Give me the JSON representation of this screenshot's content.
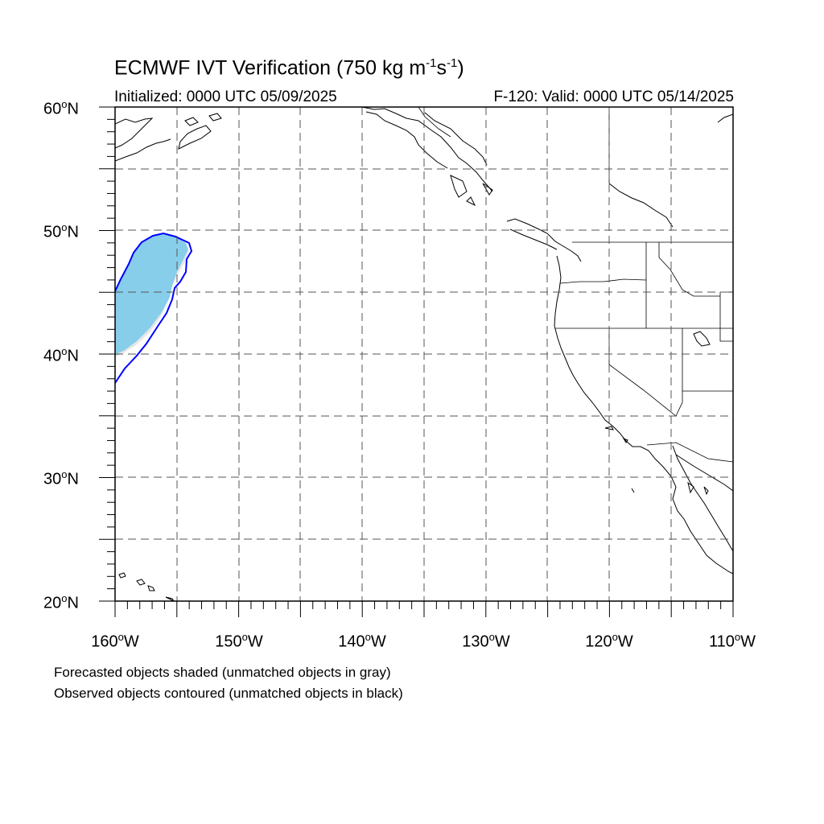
{
  "title": {
    "main": "ECMWF IVT Verification (750 kg m",
    "sup1": "-1",
    "mid": "s",
    "sup2": "-1",
    "end": ")"
  },
  "initialized": "Initialized: 0000 UTC 05/09/2025",
  "valid": "F-120: Valid: 0000 UTC 05/14/2025",
  "latitude_labels": [
    {
      "num": "60",
      "deg": "o",
      "hem": "N"
    },
    {
      "num": "50",
      "deg": "o",
      "hem": "N"
    },
    {
      "num": "40",
      "deg": "o",
      "hem": "N"
    },
    {
      "num": "30",
      "deg": "o",
      "hem": "N"
    },
    {
      "num": "20",
      "deg": "o",
      "hem": "N"
    }
  ],
  "longitude_labels": [
    {
      "num": "160",
      "deg": "o",
      "hem": "W"
    },
    {
      "num": "150",
      "deg": "o",
      "hem": "W"
    },
    {
      "num": "140",
      "deg": "o",
      "hem": "W"
    },
    {
      "num": "130",
      "deg": "o",
      "hem": "W"
    },
    {
      "num": "120",
      "deg": "o",
      "hem": "W"
    },
    {
      "num": "110",
      "deg": "o",
      "hem": "W"
    }
  ],
  "notes": {
    "forecast": "Forecasted objects shaded (unmatched objects in gray)",
    "observed": "Observed objects contoured (unmatched objects in black)"
  },
  "colors": {
    "forecast_fill": "#87ceeb",
    "forecast_edge": "#e6e6e6",
    "observed_contour": "#0000ff",
    "coastline": "#000000",
    "grid": "#555555"
  }
}
